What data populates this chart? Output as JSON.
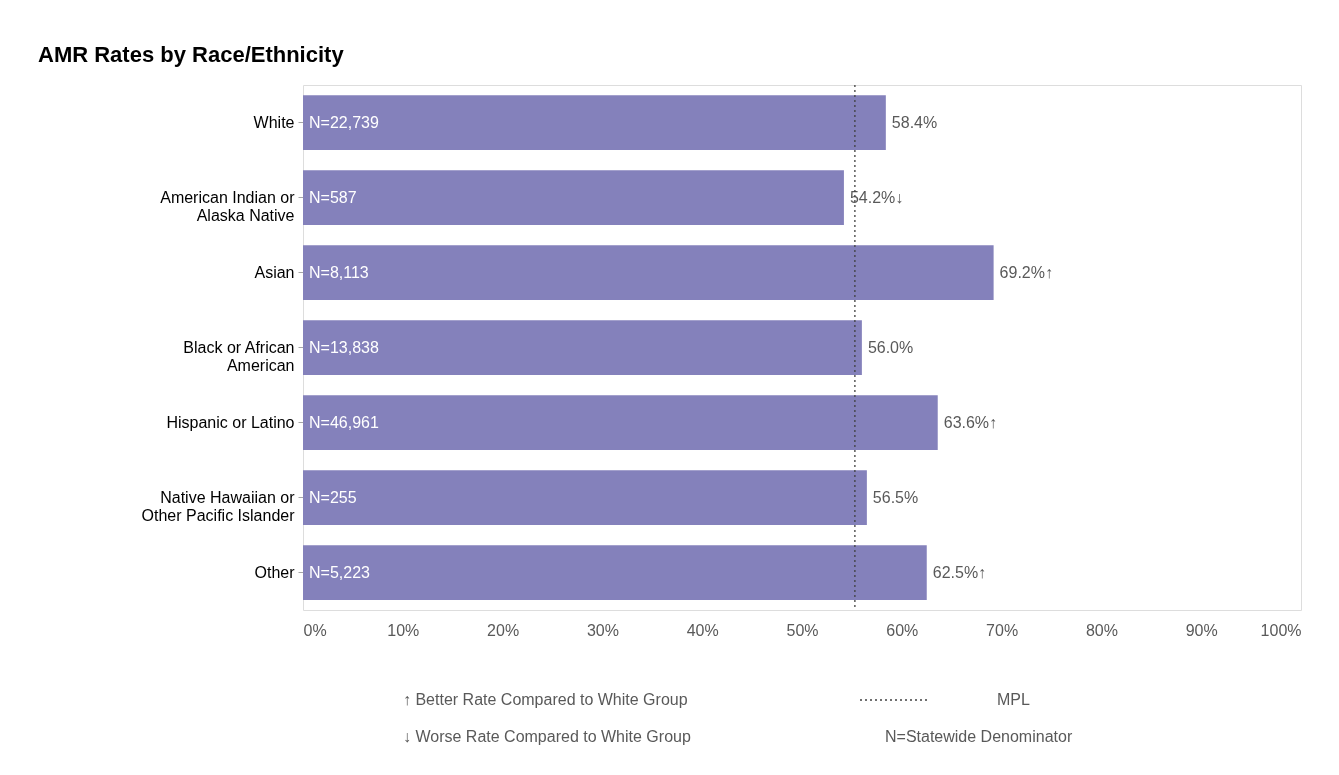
{
  "chart_data": {
    "type": "bar",
    "orientation": "horizontal",
    "title": "AMR Rates by Race/Ethnicity",
    "categories": [
      "White",
      "American Indian or Alaska Native",
      "Asian",
      "Black or African American",
      "Hispanic or Latino",
      "Native Hawaiian or Other Pacific Islander",
      "Other"
    ],
    "values": [
      58.4,
      54.2,
      69.2,
      56.0,
      63.6,
      56.5,
      62.5
    ],
    "value_labels": [
      "58.4%",
      "54.2%↓",
      "69.2%↑",
      "56.0%",
      "63.6%↑",
      "56.5%",
      "62.5%↑"
    ],
    "color": "#8481bb",
    "xlim": [
      0,
      100
    ],
    "xticks": [
      {
        "value": 0,
        "label": "0%"
      },
      {
        "value": 10,
        "label": "10%"
      },
      {
        "value": 20,
        "label": "20%"
      },
      {
        "value": 30,
        "label": "30%"
      },
      {
        "value": 40,
        "label": "40%"
      },
      {
        "value": 50,
        "label": "50%"
      },
      {
        "value": 60,
        "label": "60%"
      },
      {
        "value": 70,
        "label": "70%"
      },
      {
        "value": 80,
        "label": "80%"
      },
      {
        "value": 90,
        "label": "90%"
      },
      {
        "value": 100,
        "label": "100%"
      }
    ],
    "grid": false,
    "ref_lines": [
      {
        "axis": "x",
        "value": 55.3,
        "label": "MPL",
        "line_style": "dotted",
        "color": "#404040"
      }
    ],
    "annotations": [
      "N=22,739",
      "N=587",
      "N=8,113",
      "N=13,838",
      "N=46,961",
      "N=255",
      "N=5,223",
      "↑ Better Rate Compared to White Group",
      "↓ Worse Rate Compared to White Group",
      "N=Statewide Denominator"
    ]
  }
}
